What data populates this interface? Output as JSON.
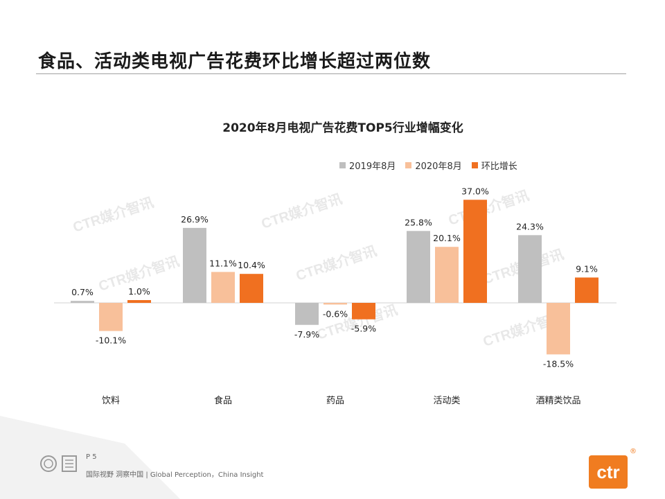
{
  "slide": {
    "title": "食品、活动类电视广告花费环比增长超过两位数",
    "page_label": "P 5",
    "tagline": "国际视野  洞察中国 |  Global Perception，China Insight",
    "logo_text": "ctr",
    "reg_mark": "®",
    "watermark": "CTR媒介智讯"
  },
  "colors": {
    "s2019": "#bfbfbf",
    "s2020": "#f8c09a",
    "growth": "#f07020"
  },
  "chart_data": {
    "type": "bar",
    "title": "2020年8月电视广告花费TOP5行业增幅变化",
    "categories": [
      "饮料",
      "食品",
      "药品",
      "活动类",
      "酒精类饮品"
    ],
    "series": [
      {
        "name": "2019年8月",
        "values": [
          0.7,
          26.9,
          -7.9,
          25.8,
          24.3
        ],
        "labels": [
          "0.7%",
          "26.9%",
          "-7.9%",
          "25.8%",
          "24.3%"
        ]
      },
      {
        "name": "2020年8月",
        "values": [
          -10.1,
          11.1,
          -0.6,
          20.1,
          -18.5
        ],
        "labels": [
          "-10.1%",
          "11.1%",
          "-0.6%",
          "20.1%",
          "-18.5%"
        ]
      },
      {
        "name": "环比增长",
        "values": [
          1.0,
          10.4,
          -5.9,
          37.0,
          9.1
        ],
        "labels": [
          "1.0%",
          "10.4%",
          "-5.9%",
          "37.0%",
          "9.1%"
        ]
      }
    ],
    "xlabel": "",
    "ylabel": "",
    "ylim": [
      -20,
      40
    ],
    "legend": "top-right",
    "grid": false
  }
}
